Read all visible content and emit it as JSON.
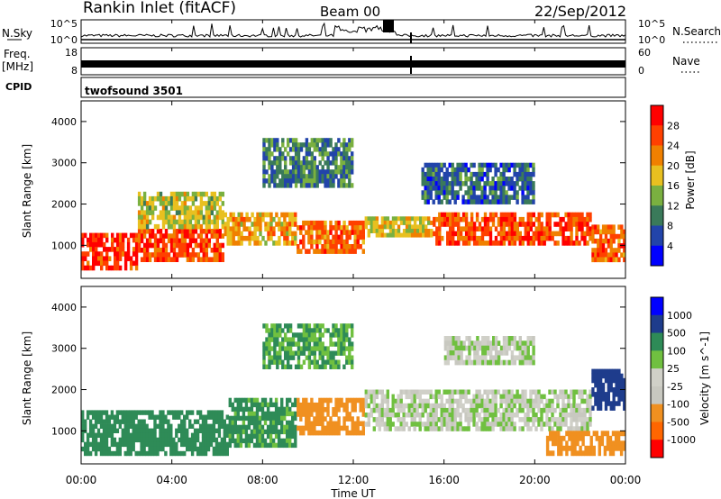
{
  "header": {
    "station": "Rankin Inlet (fitACF)",
    "beam": "Beam 00",
    "date": "22/Sep/2012"
  },
  "sky_panel": {
    "left_label": "N.Sky",
    "tick_top": "10^5",
    "tick_bottom": "10^0",
    "right_label": "N.Search",
    "right_ticks": [
      "10^5",
      "10^0"
    ]
  },
  "freq_panel": {
    "label_line1": "Freq.",
    "label_line2": "[MHz]",
    "tick_top": "18",
    "tick_bottom": "8",
    "right_label": "Nave",
    "right_ticks": [
      "60",
      "0"
    ]
  },
  "cpid": {
    "label": "CPID",
    "program": "twofsound 3501"
  },
  "x_axis": {
    "title": "Time UT",
    "ticks": [
      "00:00",
      "04:00",
      "08:00",
      "12:00",
      "16:00",
      "20:00",
      "00:00"
    ]
  },
  "colors": {
    "power": [
      "#0000ff",
      "#2244aa",
      "#3a7a5a",
      "#7ab040",
      "#e8c020",
      "#f08000",
      "#ff4000",
      "#ff0000"
    ],
    "velocity": [
      "#ff0000",
      "#ff6600",
      "#f09020",
      "#c8c8c0",
      "#d0d0c8",
      "#70c040",
      "#2e8b57",
      "#1e3c8c",
      "#0000ff"
    ]
  },
  "chart_data": [
    {
      "type": "heatmap",
      "title": "Power",
      "xlabel": "Time UT",
      "ylabel": "Slant Range [km]",
      "ylim": [
        200,
        4500
      ],
      "yticks": [
        1000,
        2000,
        3000,
        4000
      ],
      "colorbar": {
        "label": "Power [dB]",
        "ticks": [
          4,
          8,
          12,
          16,
          20,
          24,
          28
        ],
        "range": [
          0,
          32
        ]
      },
      "bands": [
        {
          "t0": 0.0,
          "t1": 2.5,
          "r0": 400,
          "r1": 1300,
          "value": 28
        },
        {
          "t0": 2.5,
          "t1": 6.3,
          "r0": 600,
          "r1": 1400,
          "value": 26
        },
        {
          "t0": 2.5,
          "t1": 6.3,
          "r0": 1400,
          "r1": 2300,
          "value": 16
        },
        {
          "t0": 6.3,
          "t1": 9.5,
          "r0": 1000,
          "r1": 1800,
          "value": 20
        },
        {
          "t0": 9.5,
          "t1": 12.5,
          "r0": 800,
          "r1": 1600,
          "value": 24
        },
        {
          "t0": 12.5,
          "t1": 15.5,
          "r0": 1200,
          "r1": 1700,
          "value": 18
        },
        {
          "t0": 15.5,
          "t1": 22.5,
          "r0": 1000,
          "r1": 1800,
          "value": 26
        },
        {
          "t0": 22.5,
          "t1": 24.0,
          "r0": 600,
          "r1": 1500,
          "value": 24
        },
        {
          "t0": 8.0,
          "t1": 12.0,
          "r0": 2400,
          "r1": 3600,
          "value": 10
        },
        {
          "t0": 15.0,
          "t1": 20.0,
          "r0": 2000,
          "r1": 3000,
          "value": 8
        }
      ]
    },
    {
      "type": "heatmap",
      "title": "Velocity",
      "xlabel": "Time UT",
      "ylabel": "Slant Range [km]",
      "ylim": [
        200,
        4500
      ],
      "yticks": [
        1000,
        2000,
        3000,
        4000
      ],
      "colorbar": {
        "label": "Velocity [m s^-1]",
        "ticks": [
          1000,
          500,
          100,
          25,
          -25,
          -100,
          -500,
          -1000
        ]
      },
      "bands": [
        {
          "t0": 0.0,
          "t1": 6.5,
          "r0": 400,
          "r1": 1500,
          "value": 200
        },
        {
          "t0": 6.5,
          "t1": 9.5,
          "r0": 600,
          "r1": 1800,
          "value": 150
        },
        {
          "t0": 9.5,
          "t1": 12.5,
          "r0": 900,
          "r1": 1800,
          "value": -300
        },
        {
          "t0": 12.5,
          "t1": 22.5,
          "r0": 1000,
          "r1": 2000,
          "value": 0
        },
        {
          "t0": 20.5,
          "t1": 24.0,
          "r0": 400,
          "r1": 1000,
          "value": -300
        },
        {
          "t0": 22.5,
          "t1": 24.0,
          "r0": 1500,
          "r1": 2500,
          "value": 600
        },
        {
          "t0": 8.0,
          "t1": 12.0,
          "r0": 2500,
          "r1": 3600,
          "value": 100
        },
        {
          "t0": 16.0,
          "t1": 20.0,
          "r0": 2600,
          "r1": 3300,
          "value": 0
        }
      ]
    }
  ]
}
